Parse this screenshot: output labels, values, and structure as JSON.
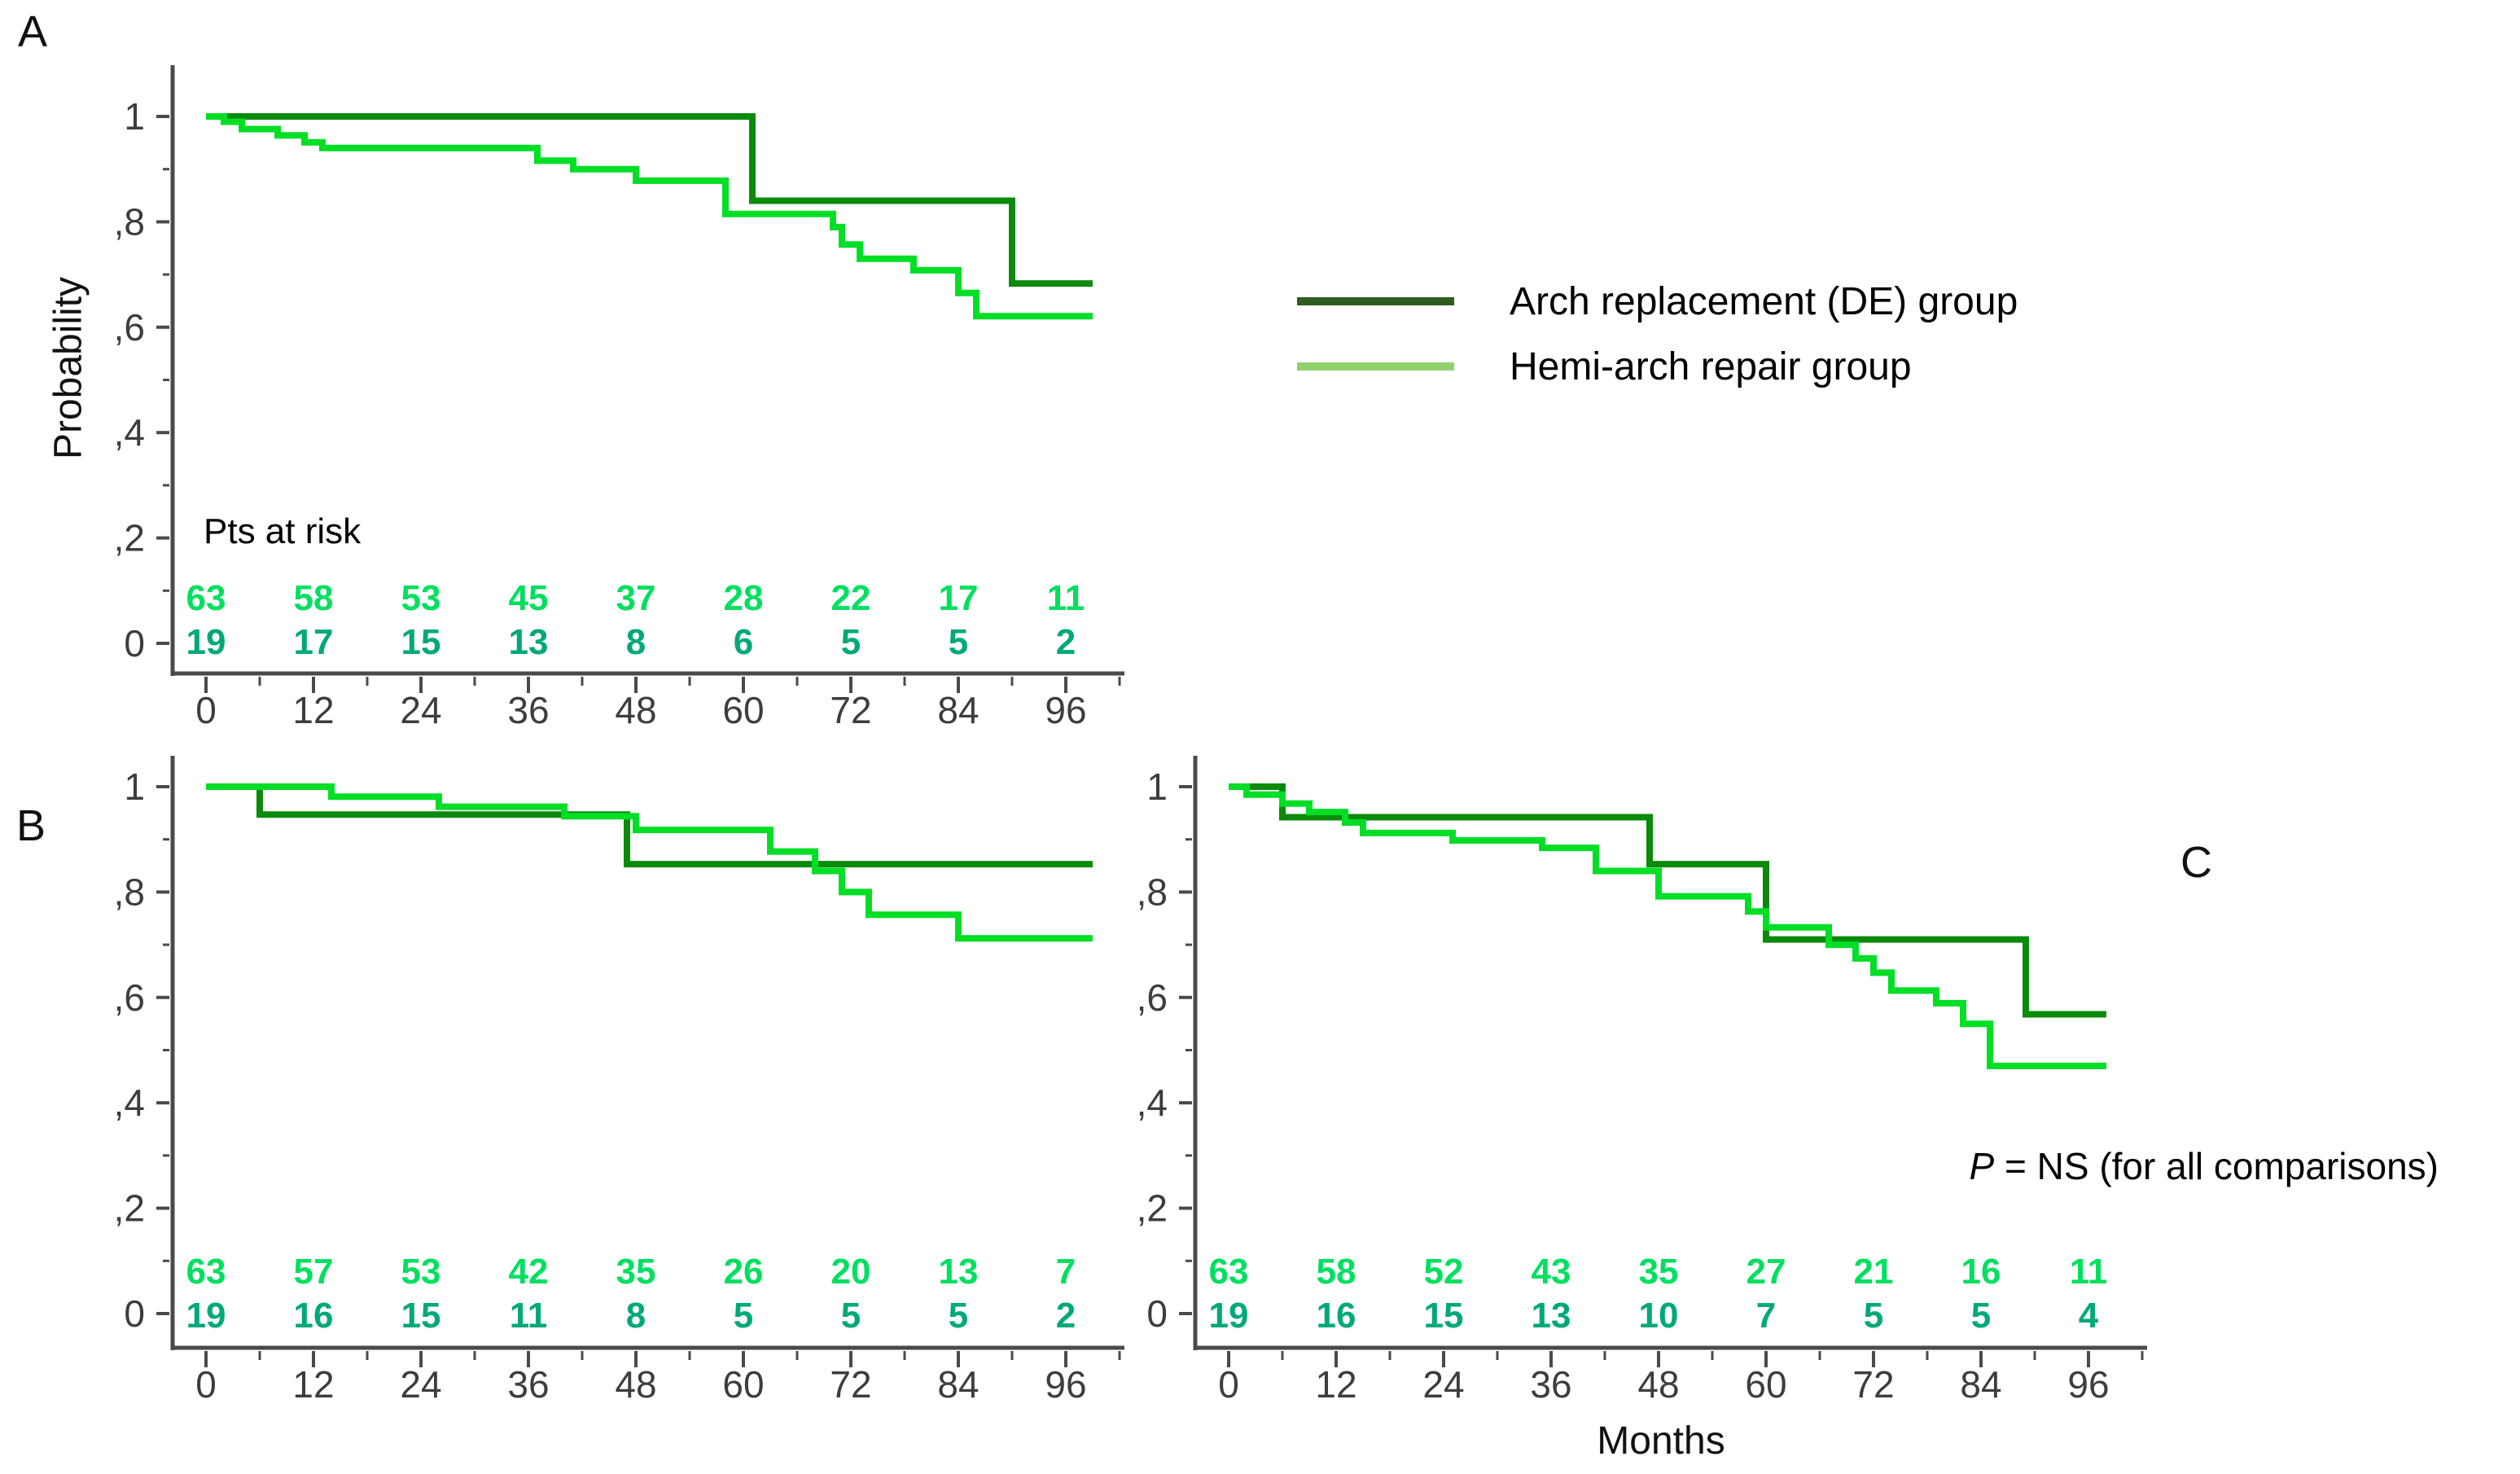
{
  "figure": {
    "panel_a_label": "A",
    "panel_b_label": "B",
    "panel_c_label": "C",
    "y_axis_label": "Probability",
    "x_axis_label": "Months",
    "pts_at_risk_label": "Pts at risk",
    "p_note": {
      "symbol": "P",
      "rest": " = NS (for all comparisons)"
    }
  },
  "legend": {
    "items": [
      {
        "label": "Arch replacement (DE) group",
        "swatch_color": "#2e5c20"
      },
      {
        "label": "Hemi-arch repair group",
        "swatch_color": "#90d16d"
      }
    ]
  },
  "colors": {
    "curve_arch_replacement": "#0b8a0b",
    "curve_hemi_arch": "#00de26",
    "at_risk_row_hemi": "#00df5f",
    "at_risk_row_arch": "#00a87a",
    "axis": "#4a4a4a",
    "tick_label": "#3d3d3d",
    "text": "#111111"
  },
  "chart_data": [
    {
      "panel": "A",
      "type": "line",
      "subtype": "kaplan-meier-step",
      "title": "",
      "xlabel": "Months",
      "ylabel": "Probability",
      "xlim": [
        0,
        102
      ],
      "ylim": [
        0,
        1.05
      ],
      "grid": false,
      "legend_position": "top-right-outside",
      "x_ticks": [
        0,
        12,
        24,
        36,
        48,
        60,
        72,
        84,
        96
      ],
      "y_ticks": [
        {
          "value": 1.0,
          "label": "1"
        },
        {
          "value": 0.8,
          "label": ",8"
        },
        {
          "value": 0.6,
          "label": ",6"
        },
        {
          "value": 0.4,
          "label": ",4"
        },
        {
          "value": 0.2,
          "label": ",2"
        },
        {
          "value": 0.0,
          "label": "0"
        }
      ],
      "series": [
        {
          "name": "Arch replacement (DE) group",
          "color": "#0b8a0b",
          "steps": [
            [
              0,
              1
            ],
            [
              61,
              1
            ],
            [
              61,
              0.84
            ],
            [
              90,
              0.84
            ],
            [
              90,
              0.683
            ],
            [
              99,
              0.683
            ]
          ]
        },
        {
          "name": "Hemi-arch repair group",
          "color": "#00de26",
          "steps": [
            [
              0,
              1
            ],
            [
              2,
              1
            ],
            [
              2,
              0.99
            ],
            [
              4,
              0.99
            ],
            [
              4,
              0.976
            ],
            [
              8,
              0.976
            ],
            [
              8,
              0.964
            ],
            [
              11,
              0.964
            ],
            [
              11,
              0.951
            ],
            [
              13,
              0.951
            ],
            [
              13,
              0.94
            ],
            [
              37,
              0.94
            ],
            [
              37,
              0.916
            ],
            [
              41,
              0.916
            ],
            [
              41,
              0.9
            ],
            [
              48,
              0.9
            ],
            [
              48,
              0.878
            ],
            [
              58,
              0.878
            ],
            [
              58,
              0.815
            ],
            [
              70,
              0.815
            ],
            [
              70,
              0.79
            ],
            [
              71,
              0.79
            ],
            [
              71,
              0.757
            ],
            [
              73,
              0.757
            ],
            [
              73,
              0.73
            ],
            [
              79,
              0.73
            ],
            [
              79,
              0.708
            ],
            [
              84,
              0.708
            ],
            [
              84,
              0.665
            ],
            [
              86,
              0.665
            ],
            [
              86,
              0.621
            ],
            [
              99,
              0.621
            ]
          ]
        }
      ],
      "at_risk": {
        "x": [
          0,
          12,
          24,
          36,
          48,
          60,
          72,
          84,
          96
        ],
        "rows": [
          {
            "group": "Hemi-arch repair group",
            "color": "#00df5f",
            "values": [
              "63",
              "58",
              "53",
              "45",
              "37",
              "28",
              "22",
              "17",
              "11"
            ]
          },
          {
            "group": "Arch replacement (DE) group",
            "color": "#00a87a",
            "values": [
              "19",
              "17",
              "15",
              "13",
              "8",
              "6",
              "5",
              "5",
              "2"
            ]
          }
        ]
      }
    },
    {
      "panel": "B",
      "type": "line",
      "subtype": "kaplan-meier-step",
      "title": "",
      "xlabel": "Months",
      "ylabel": "",
      "xlim": [
        0,
        102
      ],
      "ylim": [
        0,
        1.05
      ],
      "grid": false,
      "x_ticks": [
        0,
        12,
        24,
        36,
        48,
        60,
        72,
        84,
        96
      ],
      "y_ticks": [
        {
          "value": 1.0,
          "label": "1"
        },
        {
          "value": 0.8,
          "label": ",8"
        },
        {
          "value": 0.6,
          "label": ",6"
        },
        {
          "value": 0.4,
          "label": ",4"
        },
        {
          "value": 0.2,
          "label": ",2"
        },
        {
          "value": 0.0,
          "label": "0"
        }
      ],
      "series": [
        {
          "name": "Arch replacement (DE) group",
          "color": "#0b8a0b",
          "steps": [
            [
              0,
              1
            ],
            [
              6,
              1
            ],
            [
              6,
              0.947
            ],
            [
              47,
              0.947
            ],
            [
              47,
              0.853
            ],
            [
              99,
              0.853
            ]
          ]
        },
        {
          "name": "Hemi-arch repair group",
          "color": "#00de26",
          "steps": [
            [
              0,
              1
            ],
            [
              14,
              1
            ],
            [
              14,
              0.981
            ],
            [
              26,
              0.981
            ],
            [
              26,
              0.962
            ],
            [
              40,
              0.962
            ],
            [
              40,
              0.944
            ],
            [
              48,
              0.944
            ],
            [
              48,
              0.918
            ],
            [
              63,
              0.918
            ],
            [
              63,
              0.877
            ],
            [
              68,
              0.877
            ],
            [
              68,
              0.84
            ],
            [
              71,
              0.84
            ],
            [
              71,
              0.8
            ],
            [
              74,
              0.8
            ],
            [
              74,
              0.757
            ],
            [
              84,
              0.757
            ],
            [
              84,
              0.712
            ],
            [
              99,
              0.712
            ]
          ]
        }
      ],
      "at_risk": {
        "x": [
          0,
          12,
          24,
          36,
          48,
          60,
          72,
          84,
          96
        ],
        "rows": [
          {
            "group": "Hemi-arch repair group",
            "color": "#00df5f",
            "values": [
              "63",
              "57",
              "53",
              "42",
              "35",
              "26",
              "20",
              "13",
              "7"
            ]
          },
          {
            "group": "Arch replacement (DE) group",
            "color": "#00a87a",
            "values": [
              "19",
              "16",
              "15",
              "11",
              "8",
              "5",
              "5",
              "5",
              "2"
            ]
          }
        ]
      }
    },
    {
      "panel": "C",
      "type": "line",
      "subtype": "kaplan-meier-step",
      "title": "",
      "xlabel": "Months",
      "ylabel": "",
      "xlim": [
        0,
        102
      ],
      "ylim": [
        0,
        1.05
      ],
      "grid": false,
      "x_ticks": [
        0,
        12,
        24,
        36,
        48,
        60,
        72,
        84,
        96
      ],
      "y_ticks": [
        {
          "value": 1.0,
          "label": "1"
        },
        {
          "value": 0.8,
          "label": ",8"
        },
        {
          "value": 0.6,
          "label": ",6"
        },
        {
          "value": 0.4,
          "label": ",4"
        },
        {
          "value": 0.2,
          "label": ",2"
        },
        {
          "value": 0.0,
          "label": "0"
        }
      ],
      "series": [
        {
          "name": "Arch replacement (DE) group",
          "color": "#0b8a0b",
          "steps": [
            [
              0,
              1
            ],
            [
              6,
              1
            ],
            [
              6,
              0.942
            ],
            [
              47,
              0.942
            ],
            [
              47,
              0.853
            ],
            [
              60,
              0.853
            ],
            [
              60,
              0.71
            ],
            [
              89,
              0.71
            ],
            [
              89,
              0.568
            ],
            [
              98,
              0.568
            ]
          ]
        },
        {
          "name": "Hemi-arch repair group",
          "color": "#00de26",
          "steps": [
            [
              0,
              1
            ],
            [
              2,
              1
            ],
            [
              2,
              0.985
            ],
            [
              6,
              0.985
            ],
            [
              6,
              0.968
            ],
            [
              9,
              0.968
            ],
            [
              9,
              0.952
            ],
            [
              13,
              0.952
            ],
            [
              13,
              0.932
            ],
            [
              15,
              0.932
            ],
            [
              15,
              0.912
            ],
            [
              25,
              0.912
            ],
            [
              25,
              0.898
            ],
            [
              35,
              0.898
            ],
            [
              35,
              0.884
            ],
            [
              41,
              0.884
            ],
            [
              41,
              0.84
            ],
            [
              48,
              0.84
            ],
            [
              48,
              0.792
            ],
            [
              58,
              0.792
            ],
            [
              58,
              0.763
            ],
            [
              60,
              0.763
            ],
            [
              60,
              0.733
            ],
            [
              67,
              0.733
            ],
            [
              67,
              0.7
            ],
            [
              70,
              0.7
            ],
            [
              70,
              0.674
            ],
            [
              72,
              0.674
            ],
            [
              72,
              0.647
            ],
            [
              74,
              0.647
            ],
            [
              74,
              0.613
            ],
            [
              79,
              0.613
            ],
            [
              79,
              0.589
            ],
            [
              82,
              0.589
            ],
            [
              82,
              0.55
            ],
            [
              85,
              0.55
            ],
            [
              85,
              0.47
            ],
            [
              98,
              0.47
            ]
          ]
        }
      ],
      "at_risk": {
        "x": [
          0,
          12,
          24,
          36,
          48,
          60,
          72,
          84,
          96
        ],
        "rows": [
          {
            "group": "Hemi-arch repair group",
            "color": "#00df5f",
            "values": [
              "63",
              "58",
              "52",
              "43",
              "35",
              "27",
              "21",
              "16",
              "11"
            ]
          },
          {
            "group": "Arch replacement (DE) group",
            "color": "#00a87a",
            "values": [
              "19",
              "16",
              "15",
              "13",
              "10",
              "7",
              "5",
              "5",
              "4"
            ]
          }
        ]
      }
    }
  ]
}
